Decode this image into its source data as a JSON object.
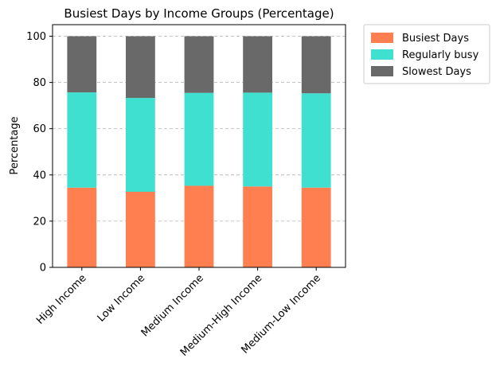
{
  "chart_data": {
    "type": "bar",
    "stacked": true,
    "title": "Busiest Days by Income Groups (Percentage)",
    "xlabel": "",
    "ylabel": "Percentage",
    "ylim": [
      0,
      105
    ],
    "yticks": [
      0,
      20,
      40,
      60,
      80,
      100
    ],
    "grid": "y-dashed",
    "legend_position": "outside-top-right",
    "categories": [
      "High Income",
      "Low Income",
      "Medium Income",
      "Medium-High Income",
      "Medium-Low Income"
    ],
    "series": [
      {
        "name": "Busiest Days",
        "color": "#FF7F50",
        "values": [
          34.5,
          32.7,
          35.3,
          35.0,
          34.5
        ]
      },
      {
        "name": "Regularly busy",
        "color": "#40E0D0",
        "values": [
          41.2,
          40.6,
          40.2,
          40.6,
          40.8
        ]
      },
      {
        "name": "Slowest Days",
        "color": "#696969",
        "values": [
          24.3,
          26.7,
          24.5,
          24.4,
          24.7
        ]
      }
    ]
  }
}
